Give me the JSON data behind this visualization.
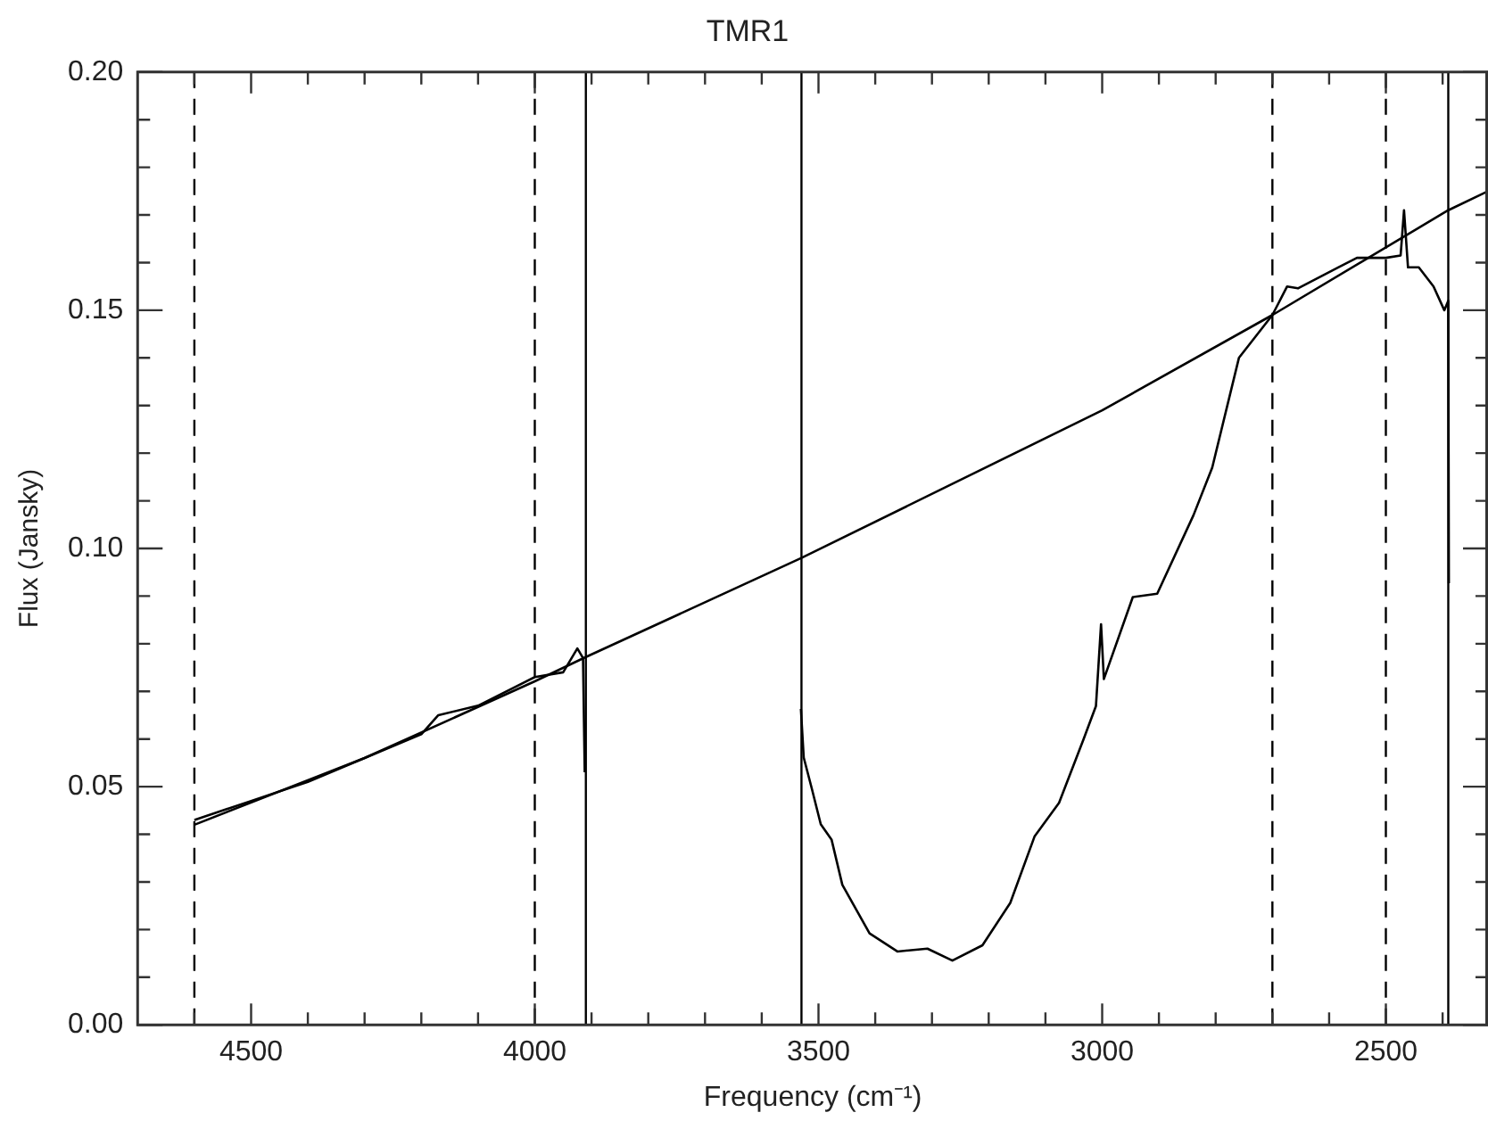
{
  "chart_data": {
    "type": "line",
    "title": "TMR1",
    "xlabel": "Frequency (cm⁻¹)",
    "ylabel": "Flux (Jansky)",
    "xlim": [
      4700,
      2320
    ],
    "ylim": [
      0,
      0.2
    ],
    "xticks": [
      {
        "value": 4600,
        "label": null
      },
      {
        "value": 4500,
        "label": "4500"
      },
      {
        "value": 4400,
        "label": null
      },
      {
        "value": 4300,
        "label": null
      },
      {
        "value": 4200,
        "label": null
      },
      {
        "value": 4100,
        "label": null
      },
      {
        "value": 4000,
        "label": "4000"
      },
      {
        "value": 3900,
        "label": null
      },
      {
        "value": 3800,
        "label": null
      },
      {
        "value": 3700,
        "label": null
      },
      {
        "value": 3600,
        "label": null
      },
      {
        "value": 3500,
        "label": "3500"
      },
      {
        "value": 3400,
        "label": null
      },
      {
        "value": 3300,
        "label": null
      },
      {
        "value": 3200,
        "label": null
      },
      {
        "value": 3100,
        "label": null
      },
      {
        "value": 3000,
        "label": "3000"
      },
      {
        "value": 2900,
        "label": null
      },
      {
        "value": 2800,
        "label": null
      },
      {
        "value": 2700,
        "label": null
      },
      {
        "value": 2600,
        "label": null
      },
      {
        "value": 2500,
        "label": "2500"
      },
      {
        "value": 2400,
        "label": null
      }
    ],
    "yticks": [
      {
        "value": 0,
        "label": "0.00"
      },
      {
        "value": 0.01,
        "label": null
      },
      {
        "value": 0.02,
        "label": null
      },
      {
        "value": 0.03,
        "label": null
      },
      {
        "value": 0.04,
        "label": null
      },
      {
        "value": 0.05,
        "label": "0.05"
      },
      {
        "value": 0.06,
        "label": null
      },
      {
        "value": 0.07,
        "label": null
      },
      {
        "value": 0.08,
        "label": null
      },
      {
        "value": 0.09,
        "label": null
      },
      {
        "value": 0.1,
        "label": "0.10"
      },
      {
        "value": 0.11,
        "label": null
      },
      {
        "value": 0.12,
        "label": null
      },
      {
        "value": 0.13,
        "label": null
      },
      {
        "value": 0.14,
        "label": null
      },
      {
        "value": 0.15,
        "label": "0.15"
      },
      {
        "value": 0.16,
        "label": null
      },
      {
        "value": 0.17,
        "label": null
      },
      {
        "value": 0.18,
        "label": null
      },
      {
        "value": 0.19,
        "label": null
      },
      {
        "value": 0.2,
        "label": "0.20"
      }
    ],
    "grid": false,
    "legend": false,
    "marker": "none",
    "series": [
      {
        "color": "#000000",
        "line_style": "solid",
        "x": [
          4600,
          4500,
          4400,
          4300,
          4200,
          4170,
          4100,
          4000,
          3950,
          3925,
          3915,
          3912,
          3700,
          3531,
          3526,
          3512,
          3496,
          3477,
          3458,
          3410,
          3361,
          3308,
          3264,
          3211,
          3162,
          3119,
          3076,
          3033,
          3011,
          3002,
          2997,
          2946,
          2903,
          2839,
          2806,
          2759,
          2700,
          2674,
          2655,
          2584,
          2551,
          2500,
          2474,
          2468,
          2461,
          2442,
          2416,
          2397,
          2390,
          2389
        ],
        "values": [
          0.043,
          0.047,
          0.051,
          0.056,
          0.061,
          0.065,
          0.067,
          0.073,
          0.074,
          0.079,
          0.077,
          0.053,
          null,
          0.0663,
          0.0561,
          0.0497,
          0.0421,
          0.0389,
          0.0294,
          0.0192,
          0.0154,
          0.016,
          0.0135,
          0.0167,
          0.0256,
          0.0396,
          0.0466,
          0.0599,
          0.0669,
          0.0841,
          0.0726,
          0.0898,
          0.0905,
          0.107,
          0.117,
          0.14,
          0.149,
          0.155,
          0.1546,
          0.159,
          0.161,
          0.161,
          0.1615,
          0.171,
          0.159,
          0.159,
          0.155,
          0.15,
          0.152,
          0.0927
        ]
      },
      {
        "color": "#000000",
        "line_style": "solid",
        "x": [
          4600,
          4300,
          4000,
          3910,
          3530,
          3000,
          2700,
          2390,
          2320
        ],
        "values": [
          0.042,
          0.056,
          0.0721,
          0.0772,
          0.098,
          0.129,
          0.149,
          0.171,
          0.175
        ]
      }
    ],
    "ref_lines": [
      {
        "axis": "x",
        "value": 4600,
        "line_style": "dashed",
        "color": "#000000"
      },
      {
        "axis": "x",
        "value": 4000,
        "line_style": "dashed",
        "color": "#000000"
      },
      {
        "axis": "x",
        "value": 3910,
        "line_style": "solid",
        "color": "#000000"
      },
      {
        "axis": "x",
        "value": 3530,
        "line_style": "solid",
        "color": "#000000"
      },
      {
        "axis": "x",
        "value": 2700,
        "line_style": "dashed",
        "color": "#000000"
      },
      {
        "axis": "x",
        "value": 2500,
        "line_style": "dashed",
        "color": "#000000"
      },
      {
        "axis": "x",
        "value": 2390,
        "line_style": "solid",
        "color": "#000000"
      }
    ]
  }
}
